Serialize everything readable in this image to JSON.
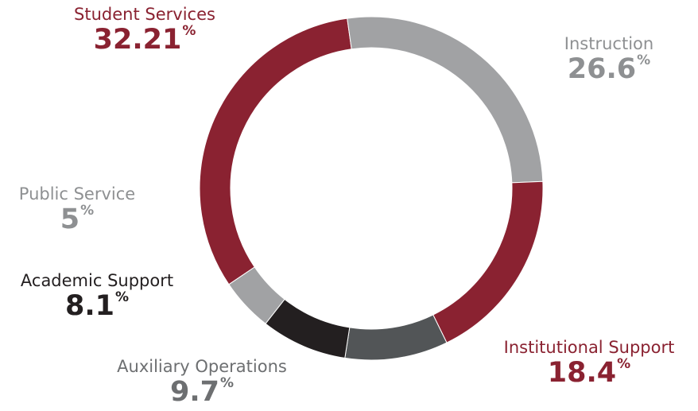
{
  "chart_data": {
    "type": "pie",
    "donut": true,
    "unit": "%",
    "slices": [
      {
        "label": "Student Services",
        "value": 32.21,
        "display": "32.21",
        "color": "#8a2231"
      },
      {
        "label": "Instruction",
        "value": 26.6,
        "display": "26.6",
        "color": "#a1a2a4"
      },
      {
        "label": "Institutional Support",
        "value": 18.4,
        "display": "18.4",
        "color": "#8a2231"
      },
      {
        "label": "Auxiliary Operations",
        "value": 9.7,
        "display": "9.7",
        "color": "#525557"
      },
      {
        "label": "Academic Support",
        "value": 8.1,
        "display": "8.1",
        "color": "#231f20"
      },
      {
        "label": "Public Service",
        "value": 5,
        "display": "5",
        "color": "#a1a2a4"
      }
    ],
    "label_colors": {
      "Student Services": "#8a2231",
      "Instruction": "#8e9092",
      "Institutional Support": "#8a2231",
      "Auxiliary Operations": "#6d6f71",
      "Academic Support": "#231f20",
      "Public Service": "#8e9092"
    }
  }
}
